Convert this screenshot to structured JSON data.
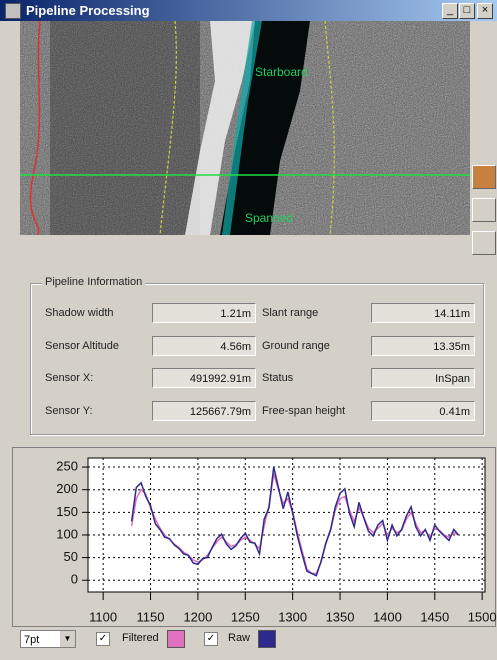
{
  "window": {
    "title": "Pipeline Processing",
    "controls": [
      "_",
      "□",
      "×"
    ]
  },
  "image": {
    "labels": [
      "Starboard",
      "Spanned"
    ]
  },
  "info": {
    "title": "Pipeline Information",
    "rows": [
      [
        {
          "label": "Shadow width",
          "value": "1.21m"
        },
        {
          "label": "Slant range",
          "value": "14.11m"
        }
      ],
      [
        {
          "label": "Sensor Altitude",
          "value": "4.56m"
        },
        {
          "label": "Ground range",
          "value": "13.35m"
        }
      ],
      [
        {
          "label": "Sensor X:",
          "value": "491992.91m"
        },
        {
          "label": "Status",
          "value": "InSpan"
        }
      ],
      [
        {
          "label": "Sensor Y:",
          "value": "125667.79m"
        },
        {
          "label": "Free-span height",
          "value": "0.41m"
        }
      ]
    ]
  },
  "chart_data": {
    "type": "line",
    "x": [
      1130,
      1135,
      1140,
      1145,
      1150,
      1155,
      1160,
      1165,
      1170,
      1175,
      1180,
      1185,
      1190,
      1195,
      1200,
      1205,
      1210,
      1215,
      1220,
      1225,
      1230,
      1235,
      1240,
      1245,
      1250,
      1255,
      1260,
      1265,
      1270,
      1275,
      1280,
      1285,
      1290,
      1295,
      1300,
      1305,
      1310,
      1315,
      1320,
      1325,
      1330,
      1335,
      1340,
      1345,
      1350,
      1355,
      1360,
      1365,
      1370,
      1375,
      1380,
      1385,
      1390,
      1395,
      1400,
      1405,
      1410,
      1415,
      1420,
      1425,
      1430,
      1435,
      1440,
      1445,
      1450,
      1455,
      1460,
      1465,
      1470,
      1475
    ],
    "series": [
      {
        "name": "Filtered",
        "color": "#e070c0",
        "values": [
          120,
          180,
          200,
          190,
          160,
          135,
          115,
          100,
          90,
          80,
          72,
          62,
          55,
          45,
          40,
          45,
          55,
          70,
          85,
          95,
          85,
          75,
          78,
          88,
          95,
          88,
          80,
          70,
          120,
          165,
          235,
          200,
          170,
          180,
          150,
          105,
          65,
          25,
          15,
          15,
          40,
          80,
          110,
          155,
          180,
          185,
          155,
          130,
          160,
          140,
          115,
          105,
          115,
          125,
          100,
          115,
          105,
          110,
          135,
          150,
          125,
          105,
          110,
          95,
          115,
          110,
          100,
          95,
          105,
          100
        ]
      },
      {
        "name": "Raw",
        "color": "#2e2a8c",
        "values": [
          130,
          205,
          215,
          185,
          165,
          125,
          112,
          95,
          92,
          78,
          70,
          58,
          55,
          38,
          35,
          48,
          50,
          72,
          92,
          102,
          80,
          68,
          76,
          92,
          104,
          84,
          82,
          58,
          135,
          160,
          250,
          205,
          158,
          195,
          148,
          98,
          58,
          20,
          15,
          10,
          42,
          82,
          112,
          162,
          192,
          202,
          148,
          118,
          172,
          138,
          108,
          98,
          122,
          132,
          88,
          122,
          98,
          112,
          142,
          162,
          118,
          98,
          112,
          88,
          122,
          108,
          98,
          88,
          112,
          100
        ]
      }
    ],
    "xlim": [
      1084,
      1503
    ],
    "ylim": [
      -26,
      270
    ],
    "xticks": [
      1100,
      1150,
      1200,
      1250,
      1300,
      1350,
      1400,
      1450,
      1500
    ],
    "yticks": [
      0,
      50,
      100,
      150,
      200,
      250
    ],
    "grid": true
  },
  "controls": {
    "point_size": "7pt"
  }
}
